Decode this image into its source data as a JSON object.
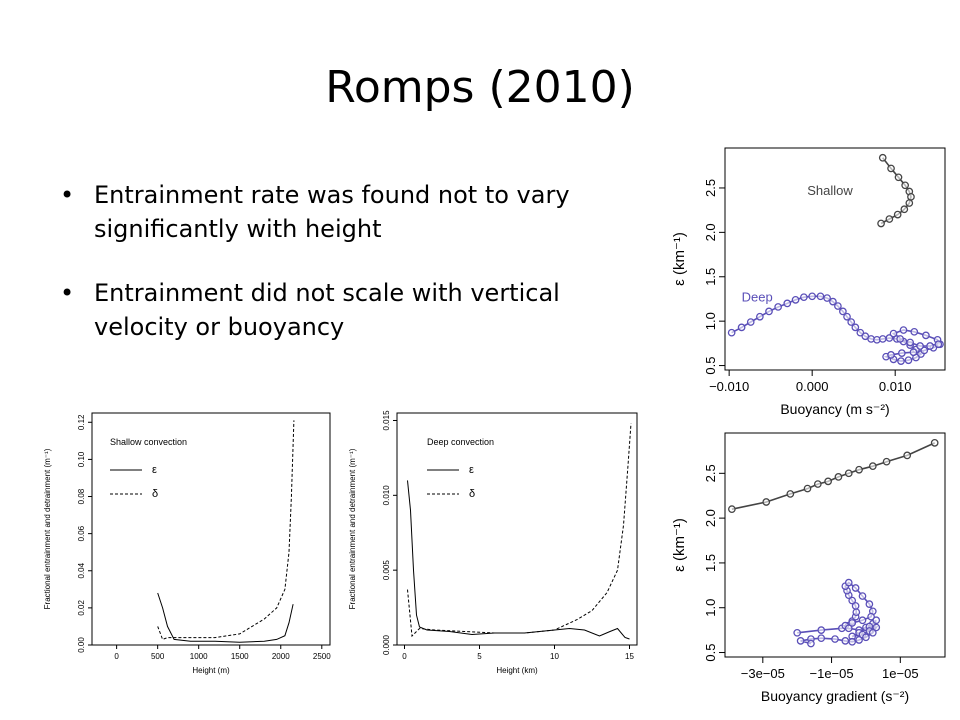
{
  "slide": {
    "title": "Romps (2010)",
    "bullets": [
      "Entrainment rate was found not to vary significantly with height",
      "Entrainment did not scale with vertical velocity or buoyancy"
    ]
  },
  "chart_data": [
    {
      "id": "shallow",
      "type": "line",
      "legend_title": "Shallow convection",
      "xlabel": "Height (m)",
      "ylabel": "Fractional entrainment and detrainment (m⁻¹)",
      "xlim": [
        -300,
        2600
      ],
      "ylim": [
        0,
        0.125
      ],
      "xticks": [
        0,
        500,
        1000,
        1500,
        2000,
        2500
      ],
      "yticks": [
        0.0,
        0.02,
        0.04,
        0.06,
        0.08,
        0.1,
        0.12
      ],
      "xtick_labels": [
        "0",
        "500",
        "1000",
        "1500",
        "2000",
        "2500"
      ],
      "ytick_labels": [
        "0.00",
        "0.02",
        "0.04",
        "0.06",
        "0.08",
        "0.10",
        "0.12"
      ],
      "series": [
        {
          "name": "ε",
          "style": "solid",
          "x": [
            500,
            560,
            620,
            700,
            900,
            1200,
            1500,
            1800,
            1950,
            2050,
            2100,
            2150
          ],
          "y": [
            0.028,
            0.02,
            0.01,
            0.003,
            0.002,
            0.002,
            0.0015,
            0.002,
            0.003,
            0.005,
            0.012,
            0.022
          ]
        },
        {
          "name": "δ",
          "style": "dashed",
          "x": [
            500,
            560,
            620,
            700,
            900,
            1200,
            1500,
            1800,
            1950,
            2050,
            2100,
            2130,
            2160
          ],
          "y": [
            0.01,
            0.003,
            0.004,
            0.004,
            0.004,
            0.004,
            0.006,
            0.014,
            0.02,
            0.03,
            0.05,
            0.08,
            0.121
          ]
        }
      ]
    },
    {
      "id": "deep",
      "type": "line",
      "legend_title": "Deep convection",
      "xlabel": "Height (km)",
      "ylabel": "Fractional entrainment and detrainment (m⁻¹)",
      "xlim": [
        -0.5,
        15.5
      ],
      "ylim": [
        0,
        0.0155
      ],
      "xticks": [
        0,
        5,
        10,
        15
      ],
      "yticks": [
        0.0,
        0.005,
        0.01,
        0.015
      ],
      "xtick_labels": [
        "0",
        "5",
        "10",
        "15"
      ],
      "ytick_labels": [
        "0.000",
        "0.005",
        "0.010",
        "0.015"
      ],
      "series": [
        {
          "name": "ε",
          "style": "solid",
          "x": [
            0.2,
            0.4,
            0.6,
            0.8,
            1.0,
            1.5,
            3,
            4.5,
            6,
            8,
            10,
            11,
            12,
            13,
            13.7,
            14.2,
            14.7,
            15
          ],
          "y": [
            0.011,
            0.009,
            0.005,
            0.002,
            0.0012,
            0.001,
            0.0009,
            0.0007,
            0.0008,
            0.0008,
            0.001,
            0.0011,
            0.001,
            0.0006,
            0.0009,
            0.0011,
            0.0005,
            0.0004
          ]
        },
        {
          "name": "δ",
          "style": "dashed",
          "x": [
            0.2,
            0.5,
            0.8,
            1.0,
            2,
            4,
            6,
            8,
            10,
            11.5,
            12.5,
            13.5,
            14.2,
            14.6,
            14.9,
            15.1
          ],
          "y": [
            0.0037,
            0.0006,
            0.0009,
            0.0011,
            0.001,
            0.0009,
            0.0008,
            0.0008,
            0.001,
            0.0017,
            0.0023,
            0.0035,
            0.005,
            0.008,
            0.012,
            0.0148
          ]
        }
      ]
    },
    {
      "id": "buoyancy",
      "type": "scatter",
      "xlabel": "Buoyancy (m s⁻²)",
      "ylabel": "ε (km⁻¹)",
      "xlim": [
        -0.0105,
        0.016
      ],
      "ylim": [
        0.45,
        2.95
      ],
      "xticks": [
        -0.01,
        0.0,
        0.01
      ],
      "yticks": [
        0.5,
        1.0,
        1.5,
        2.0,
        2.5
      ],
      "xtick_labels": [
        "−0.010",
        "0.000",
        "0.010"
      ],
      "ytick_labels": [
        "0.5",
        "1.0",
        "1.5",
        "2.0",
        "2.5"
      ],
      "series": [
        {
          "name": "Shallow",
          "color": "#444444",
          "x": [
            0.0085,
            0.0095,
            0.0104,
            0.0112,
            0.0117,
            0.0119,
            0.0117,
            0.0111,
            0.0103,
            0.0093,
            0.0083
          ],
          "y": [
            2.84,
            2.72,
            2.62,
            2.53,
            2.46,
            2.4,
            2.33,
            2.26,
            2.2,
            2.15,
            2.1
          ]
        },
        {
          "name": "Deep",
          "color": "#5a4fb8",
          "x": [
            -0.0097,
            -0.0085,
            -0.0074,
            -0.0063,
            -0.0052,
            -0.0041,
            -0.003,
            -0.002,
            -0.001,
            0.0,
            0.001,
            0.0018,
            0.0025,
            0.0031,
            0.0037,
            0.0042,
            0.0047,
            0.0052,
            0.0058,
            0.0064,
            0.0071,
            0.0078,
            0.0085,
            0.0093,
            0.0102,
            0.011,
            0.0118,
            0.0125,
            0.0131,
            0.0125,
            0.0116,
            0.0107,
            0.0098,
            0.0089,
            0.0095,
            0.0108,
            0.0122,
            0.0135,
            0.0146,
            0.0154,
            0.0151,
            0.0137,
            0.0123,
            0.011,
            0.0098,
            0.0106,
            0.0118,
            0.013,
            0.0142,
            0.0152
          ],
          "y": [
            0.87,
            0.93,
            0.99,
            1.05,
            1.11,
            1.16,
            1.2,
            1.24,
            1.27,
            1.28,
            1.28,
            1.26,
            1.22,
            1.17,
            1.11,
            1.05,
            0.99,
            0.93,
            0.87,
            0.83,
            0.8,
            0.79,
            0.8,
            0.81,
            0.8,
            0.77,
            0.73,
            0.68,
            0.63,
            0.59,
            0.56,
            0.55,
            0.57,
            0.6,
            0.62,
            0.64,
            0.65,
            0.67,
            0.7,
            0.74,
            0.79,
            0.84,
            0.88,
            0.9,
            0.86,
            0.8,
            0.76,
            0.72,
            0.72,
            0.74
          ]
        }
      ],
      "labels": [
        {
          "text": "Shallow",
          "x": -0.0006,
          "y": 2.42,
          "color": "#444444"
        },
        {
          "text": "Deep",
          "x": -0.0085,
          "y": 1.22,
          "color": "#5a4fb8"
        }
      ]
    },
    {
      "id": "gradient",
      "type": "scatter",
      "xlabel": "Buoyancy gradient (s⁻²)",
      "ylabel": "ε (km⁻¹)",
      "xlim": [
        -4.1e-05,
        2.3e-05
      ],
      "ylim": [
        0.45,
        2.95
      ],
      "xticks": [
        -3e-05,
        -1e-05,
        1e-05
      ],
      "yticks": [
        0.5,
        1.0,
        1.5,
        2.0,
        2.5
      ],
      "xtick_labels": [
        "−3e−05",
        "−1e−05",
        "1e−05"
      ],
      "ytick_labels": [
        "0.5",
        "1.0",
        "1.5",
        "2.0",
        "2.5"
      ],
      "series": [
        {
          "name": "Shallow",
          "color": "#444444",
          "x": [
            -3.9e-05,
            -2.9e-05,
            -2.2e-05,
            -1.7e-05,
            -1.4e-05,
            -1.1e-05,
            -8e-06,
            -5e-06,
            -2e-06,
            2e-06,
            6e-06,
            1.2e-05,
            2e-05
          ],
          "y": [
            2.1,
            2.18,
            2.27,
            2.33,
            2.38,
            2.41,
            2.46,
            2.5,
            2.54,
            2.58,
            2.63,
            2.7,
            2.84
          ]
        },
        {
          "name": "Deep",
          "color": "#5a4fb8",
          "x": [
            -2e-05,
            -1.3e-05,
            -7e-06,
            -5e-06,
            -4e-06,
            -3e-06,
            -2.8e-06,
            -3e-06,
            -4e-06,
            -5e-06,
            -5.5e-06,
            -6e-06,
            -5e-06,
            -3e-06,
            -1e-06,
            1e-06,
            2e-06,
            1.5e-06,
            -1e-06,
            -4e-06,
            -6e-06,
            -5e-06,
            -2e-06,
            0.0,
            2e-06,
            3e-06,
            1e-06,
            -2e-06,
            -4e-06,
            -1e-06,
            1e-06,
            3e-06,
            2e-06,
            0.0,
            -2e-06,
            -4e-06,
            -6e-06,
            -9e-06,
            -1.3e-05,
            -1.6e-05,
            -1.9e-05,
            -1.6e-05
          ],
          "y": [
            0.72,
            0.75,
            0.77,
            0.8,
            0.85,
            0.9,
            0.95,
            1.02,
            1.08,
            1.14,
            1.19,
            1.24,
            1.28,
            1.22,
            1.13,
            1.04,
            0.96,
            0.9,
            0.86,
            0.83,
            0.8,
            0.77,
            0.75,
            0.78,
            0.82,
            0.86,
            0.79,
            0.72,
            0.68,
            0.7,
            0.74,
            0.78,
            0.72,
            0.67,
            0.64,
            0.62,
            0.63,
            0.65,
            0.66,
            0.65,
            0.63,
            0.6
          ]
        }
      ]
    }
  ]
}
